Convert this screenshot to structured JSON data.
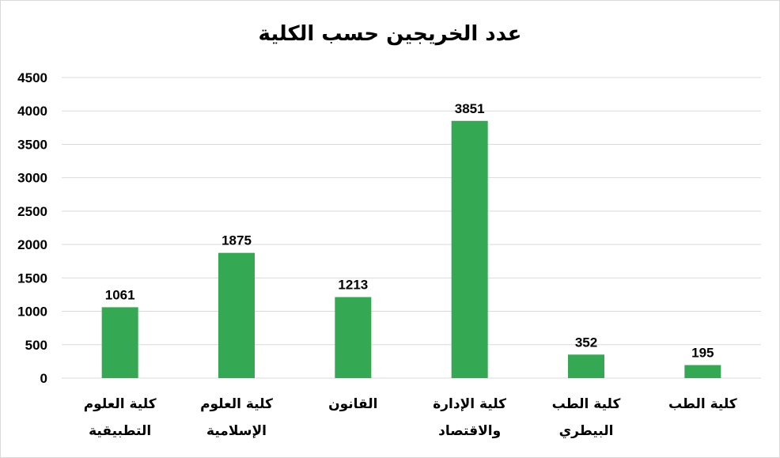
{
  "chart_data": {
    "type": "bar",
    "title": "عدد الخريجين حسب الكلية",
    "categories": [
      "كلية العلوم التطبيقية",
      "كلية العلوم الإسلامية",
      "القانون",
      "كلية الإدارة والاقتصاد",
      "كلية الطب البيطري",
      "كلية الطب"
    ],
    "values": [
      1061,
      1875,
      1213,
      3851,
      352,
      195
    ],
    "ylim": [
      0,
      4500
    ],
    "yticks": [
      "0",
      "500",
      "1000",
      "1500",
      "2000",
      "2500",
      "3000",
      "3500",
      "4000",
      "4500"
    ],
    "data_labels": [
      "1061",
      "1875",
      "1213",
      "3851",
      "352",
      "195"
    ],
    "bar_color": "#34a853",
    "grid": true,
    "legend": "none"
  }
}
